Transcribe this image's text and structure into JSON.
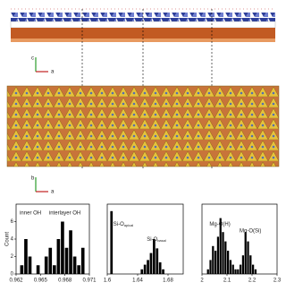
{
  "axes_top": {
    "vertical": "c",
    "horizontal": "a"
  },
  "axes_bottom": {
    "vertical": "b",
    "horizontal": "a"
  },
  "chart_data": [
    {
      "type": "histogram",
      "ylabel": "Count",
      "bins": [
        0.9625,
        0.963,
        0.9635,
        0.964,
        0.9645,
        0.965,
        0.9655,
        0.966,
        0.9665,
        0.967,
        0.9675,
        0.968,
        0.9685,
        0.969,
        0.9695,
        0.97,
        0.9705
      ],
      "values": [
        1,
        4,
        2,
        0,
        1,
        0,
        2,
        3,
        1,
        4,
        6,
        3,
        5,
        2,
        1,
        3
      ],
      "color": "#000000",
      "xlim": [
        0.962,
        0.971
      ],
      "xticks": [
        0.962,
        0.965,
        0.968,
        0.971
      ],
      "ylim": [
        0,
        8
      ],
      "yticks": [
        0,
        2,
        4,
        6
      ],
      "annotations": [
        {
          "text": "inner OH"
        },
        {
          "text": "interlayer OH"
        }
      ]
    },
    {
      "type": "histogram",
      "bins": [
        1.604,
        1.608,
        1.612,
        1.616,
        1.62,
        1.624,
        1.628,
        1.632,
        1.636,
        1.64,
        1.644,
        1.648,
        1.652,
        1.656,
        1.66,
        1.664,
        1.668,
        1.672,
        1.676
      ],
      "values": [
        27,
        0,
        0,
        0,
        0,
        0,
        0,
        0,
        0,
        0,
        2,
        4,
        6,
        9,
        15,
        11,
        5,
        2
      ],
      "color": "#000000",
      "xlim": [
        1.6,
        1.7
      ],
      "xticks": [
        1.6,
        1.64,
        1.68
      ],
      "ylim": [
        0,
        30
      ],
      "annotations": [
        {
          "text": "Si-O",
          "sub": "apical"
        },
        {
          "text": "Si-O",
          "sub": "basal"
        }
      ]
    },
    {
      "type": "histogram",
      "bins": [
        2.02,
        2.03,
        2.04,
        2.05,
        2.06,
        2.07,
        2.08,
        2.09,
        2.1,
        2.11,
        2.12,
        2.13,
        2.14,
        2.15,
        2.16,
        2.17,
        2.18,
        2.19,
        2.2,
        2.21,
        2.22
      ],
      "values": [
        1,
        3,
        6,
        5,
        8,
        12,
        9,
        7,
        5,
        3,
        2,
        1,
        1,
        2,
        4,
        9,
        7,
        4,
        2,
        1
      ],
      "color": "#000000",
      "xlim": [
        2,
        2.3
      ],
      "xticks": [
        2,
        2.1,
        2.2,
        2.3
      ],
      "ylim": [
        0,
        15
      ],
      "annotations": [
        {
          "text": "Mg-O(H)"
        },
        {
          "text": "Mg-O(Si)"
        }
      ]
    }
  ]
}
